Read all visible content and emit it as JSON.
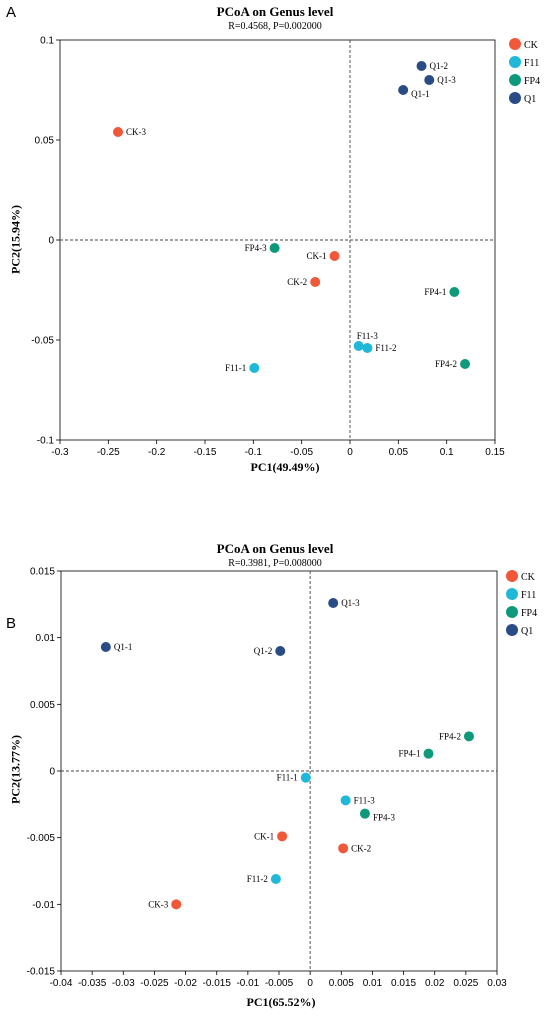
{
  "panels": [
    {
      "letter": "A",
      "title": "PCoA on Genus level",
      "subtitle": "R=0.4568, P=0.002000",
      "xlabel": "PC1(49.49%)",
      "ylabel": "PC2(15.94%)"
    },
    {
      "letter": "B",
      "title": "PCoA on Genus level",
      "subtitle": "R=0.3981, P=0.008000",
      "xlabel": "PC1(65.52%)",
      "ylabel": "PC2(13.77%)"
    }
  ],
  "chart_data": [
    {
      "type": "scatter",
      "title": "PCoA on Genus level",
      "subtitle": "R=0.4568, P=0.002000",
      "xlabel": "PC1(49.49%)",
      "ylabel": "PC2(15.94%)",
      "xlim": [
        -0.3,
        0.15
      ],
      "ylim": [
        -0.1,
        0.1
      ],
      "xticks": [
        -0.3,
        -0.25,
        -0.2,
        -0.15,
        -0.1,
        -0.05,
        0,
        0.05,
        0.1,
        0.15
      ],
      "xtick_labels": [
        "-0.3",
        "-0.25",
        "-0.2",
        "-0.15",
        "-0.1",
        "-0.05",
        "0",
        "0.05",
        "0.1",
        "0.15"
      ],
      "yticks": [
        -0.1,
        -0.05,
        0,
        0.05,
        0.1
      ],
      "ytick_labels": [
        "-0.1",
        "-0.05",
        "0",
        "0.05",
        "0.1"
      ],
      "reference_lines": {
        "x": 0,
        "y": 0,
        "style": "dashed"
      },
      "legend_position": "top-right",
      "legend": [
        {
          "name": "CK",
          "color": "#f1583a"
        },
        {
          "name": "F11",
          "color": "#1fb8d9"
        },
        {
          "name": "FP4",
          "color": "#0e9a7a"
        },
        {
          "name": "Q1",
          "color": "#2a4c86"
        }
      ],
      "points": [
        {
          "label": "CK-3",
          "group": "CK",
          "x": -0.24,
          "y": 0.054,
          "anchor": "right"
        },
        {
          "label": "CK-1",
          "group": "CK",
          "x": -0.016,
          "y": -0.008,
          "anchor": "left"
        },
        {
          "label": "CK-2",
          "group": "CK",
          "x": -0.036,
          "y": -0.021,
          "anchor": "left"
        },
        {
          "label": "F11-1",
          "group": "F11",
          "x": -0.099,
          "y": -0.064,
          "anchor": "left"
        },
        {
          "label": "F11-3",
          "group": "F11",
          "x": 0.009,
          "y": -0.053,
          "anchor": "above"
        },
        {
          "label": "F11-2",
          "group": "F11",
          "x": 0.018,
          "y": -0.054,
          "anchor": "right"
        },
        {
          "label": "FP4-3",
          "group": "FP4",
          "x": -0.078,
          "y": -0.004,
          "anchor": "left"
        },
        {
          "label": "FP4-1",
          "group": "FP4",
          "x": 0.108,
          "y": -0.026,
          "anchor": "left"
        },
        {
          "label": "FP4-2",
          "group": "FP4",
          "x": 0.119,
          "y": -0.062,
          "anchor": "left"
        },
        {
          "label": "Q1-2",
          "group": "Q1",
          "x": 0.074,
          "y": 0.087,
          "anchor": "right"
        },
        {
          "label": "Q1-3",
          "group": "Q1",
          "x": 0.082,
          "y": 0.08,
          "anchor": "right"
        },
        {
          "label": "Q1-1",
          "group": "Q1",
          "x": 0.055,
          "y": 0.075,
          "anchor": "rightdown"
        }
      ]
    },
    {
      "type": "scatter",
      "title": "PCoA on Genus level",
      "subtitle": "R=0.3981, P=0.008000",
      "xlabel": "PC1(65.52%)",
      "ylabel": "PC2(13.77%)",
      "xlim": [
        -0.04,
        0.03
      ],
      "ylim": [
        -0.015,
        0.015
      ],
      "xticks": [
        -0.04,
        -0.035,
        -0.03,
        -0.025,
        -0.02,
        -0.015,
        -0.01,
        -0.005,
        0,
        0.005,
        0.01,
        0.015,
        0.02,
        0.025,
        0.03
      ],
      "xtick_labels": [
        "-0.04",
        "-0.035",
        "-0.03",
        "-0.025",
        "-0.02",
        "-0.015",
        "-0.01",
        "-0.005",
        "0",
        "0.005",
        "0.01",
        "0.015",
        "0.02",
        "0.025",
        "0.03"
      ],
      "yticks": [
        -0.015,
        -0.01,
        -0.005,
        0,
        0.005,
        0.01,
        0.015
      ],
      "ytick_labels": [
        "-0.015",
        "-0.01",
        "-0.005",
        "0",
        "0.005",
        "0.01",
        "0.015"
      ],
      "reference_lines": {
        "x": 0,
        "y": 0,
        "style": "dashed"
      },
      "legend_position": "top-right",
      "legend": [
        {
          "name": "CK",
          "color": "#f1583a"
        },
        {
          "name": "F11",
          "color": "#1fb8d9"
        },
        {
          "name": "FP4",
          "color": "#0e9a7a"
        },
        {
          "name": "Q1",
          "color": "#2a4c86"
        }
      ],
      "points": [
        {
          "label": "Q1-1",
          "group": "Q1",
          "x": -0.0328,
          "y": 0.0093,
          "anchor": "right"
        },
        {
          "label": "Q1-2",
          "group": "Q1",
          "x": -0.0048,
          "y": 0.009,
          "anchor": "left"
        },
        {
          "label": "Q1-3",
          "group": "Q1",
          "x": 0.0037,
          "y": 0.0126,
          "anchor": "right"
        },
        {
          "label": "FP4-2",
          "group": "FP4",
          "x": 0.0255,
          "y": 0.0026,
          "anchor": "left"
        },
        {
          "label": "FP4-1",
          "group": "FP4",
          "x": 0.019,
          "y": 0.0013,
          "anchor": "left"
        },
        {
          "label": "FP4-3",
          "group": "FP4",
          "x": 0.0088,
          "y": -0.0032,
          "anchor": "rightdown"
        },
        {
          "label": "F11-1",
          "group": "F11",
          "x": -0.0007,
          "y": -0.0005,
          "anchor": "left"
        },
        {
          "label": "F11-3",
          "group": "F11",
          "x": 0.0057,
          "y": -0.0022,
          "anchor": "right"
        },
        {
          "label": "F11-2",
          "group": "F11",
          "x": -0.0055,
          "y": -0.0081,
          "anchor": "left"
        },
        {
          "label": "CK-1",
          "group": "CK",
          "x": -0.0045,
          "y": -0.0049,
          "anchor": "left"
        },
        {
          "label": "CK-2",
          "group": "CK",
          "x": 0.0053,
          "y": -0.0058,
          "anchor": "right"
        },
        {
          "label": "CK-3",
          "group": "CK",
          "x": -0.0215,
          "y": -0.01,
          "anchor": "left"
        }
      ]
    }
  ]
}
